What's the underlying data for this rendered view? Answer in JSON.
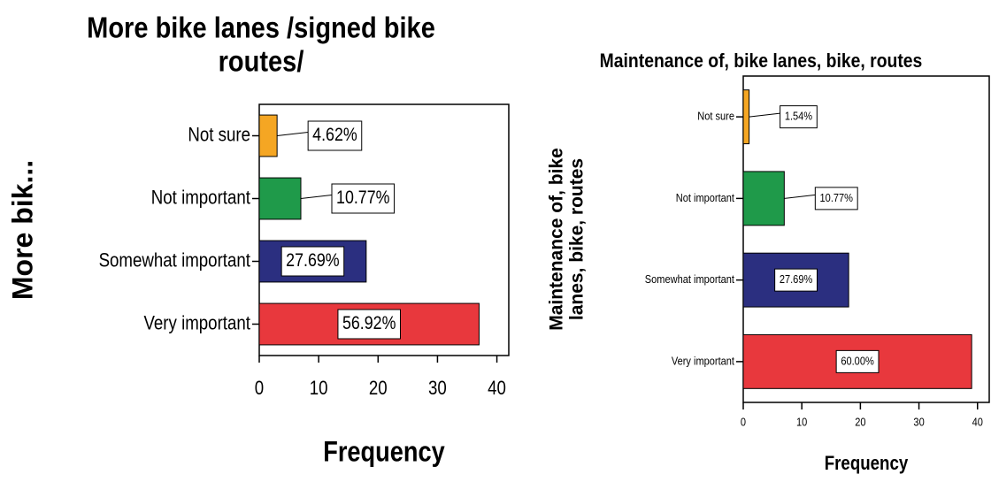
{
  "chart_data": [
    {
      "type": "barh",
      "title": [
        "More bike lanes /signed bike",
        "routes/"
      ],
      "ylabel": [
        "More bik..."
      ],
      "xlabel": "Frequency",
      "categories": [
        "Not sure",
        "Not important",
        "Somewhat important",
        "Very important"
      ],
      "values": [
        3,
        7,
        18,
        37
      ],
      "value_labels": [
        "4.62%",
        "10.77%",
        "27.69%",
        "56.92%"
      ],
      "colors": [
        "#f5a623",
        "#1f9a4a",
        "#2b2f80",
        "#e8383d"
      ],
      "xlim": [
        0,
        42
      ],
      "xticks": [
        0,
        10,
        20,
        30,
        40
      ]
    },
    {
      "type": "barh",
      "title": [
        "Maintenance of, bike lanes, bike, routes"
      ],
      "ylabel": [
        "Maintenance of, bike",
        "lanes, bike, routes"
      ],
      "xlabel": "Frequency",
      "categories": [
        "Not sure",
        "Not important",
        "Somewhat important",
        "Very important"
      ],
      "values": [
        1,
        7,
        18,
        39
      ],
      "value_labels": [
        "1.54%",
        "10.77%",
        "27.69%",
        "60.00%"
      ],
      "colors": [
        "#f5a623",
        "#1f9a4a",
        "#2b2f80",
        "#e8383d"
      ],
      "xlim": [
        0,
        42
      ],
      "xticks": [
        0,
        10,
        20,
        30,
        40
      ]
    }
  ]
}
